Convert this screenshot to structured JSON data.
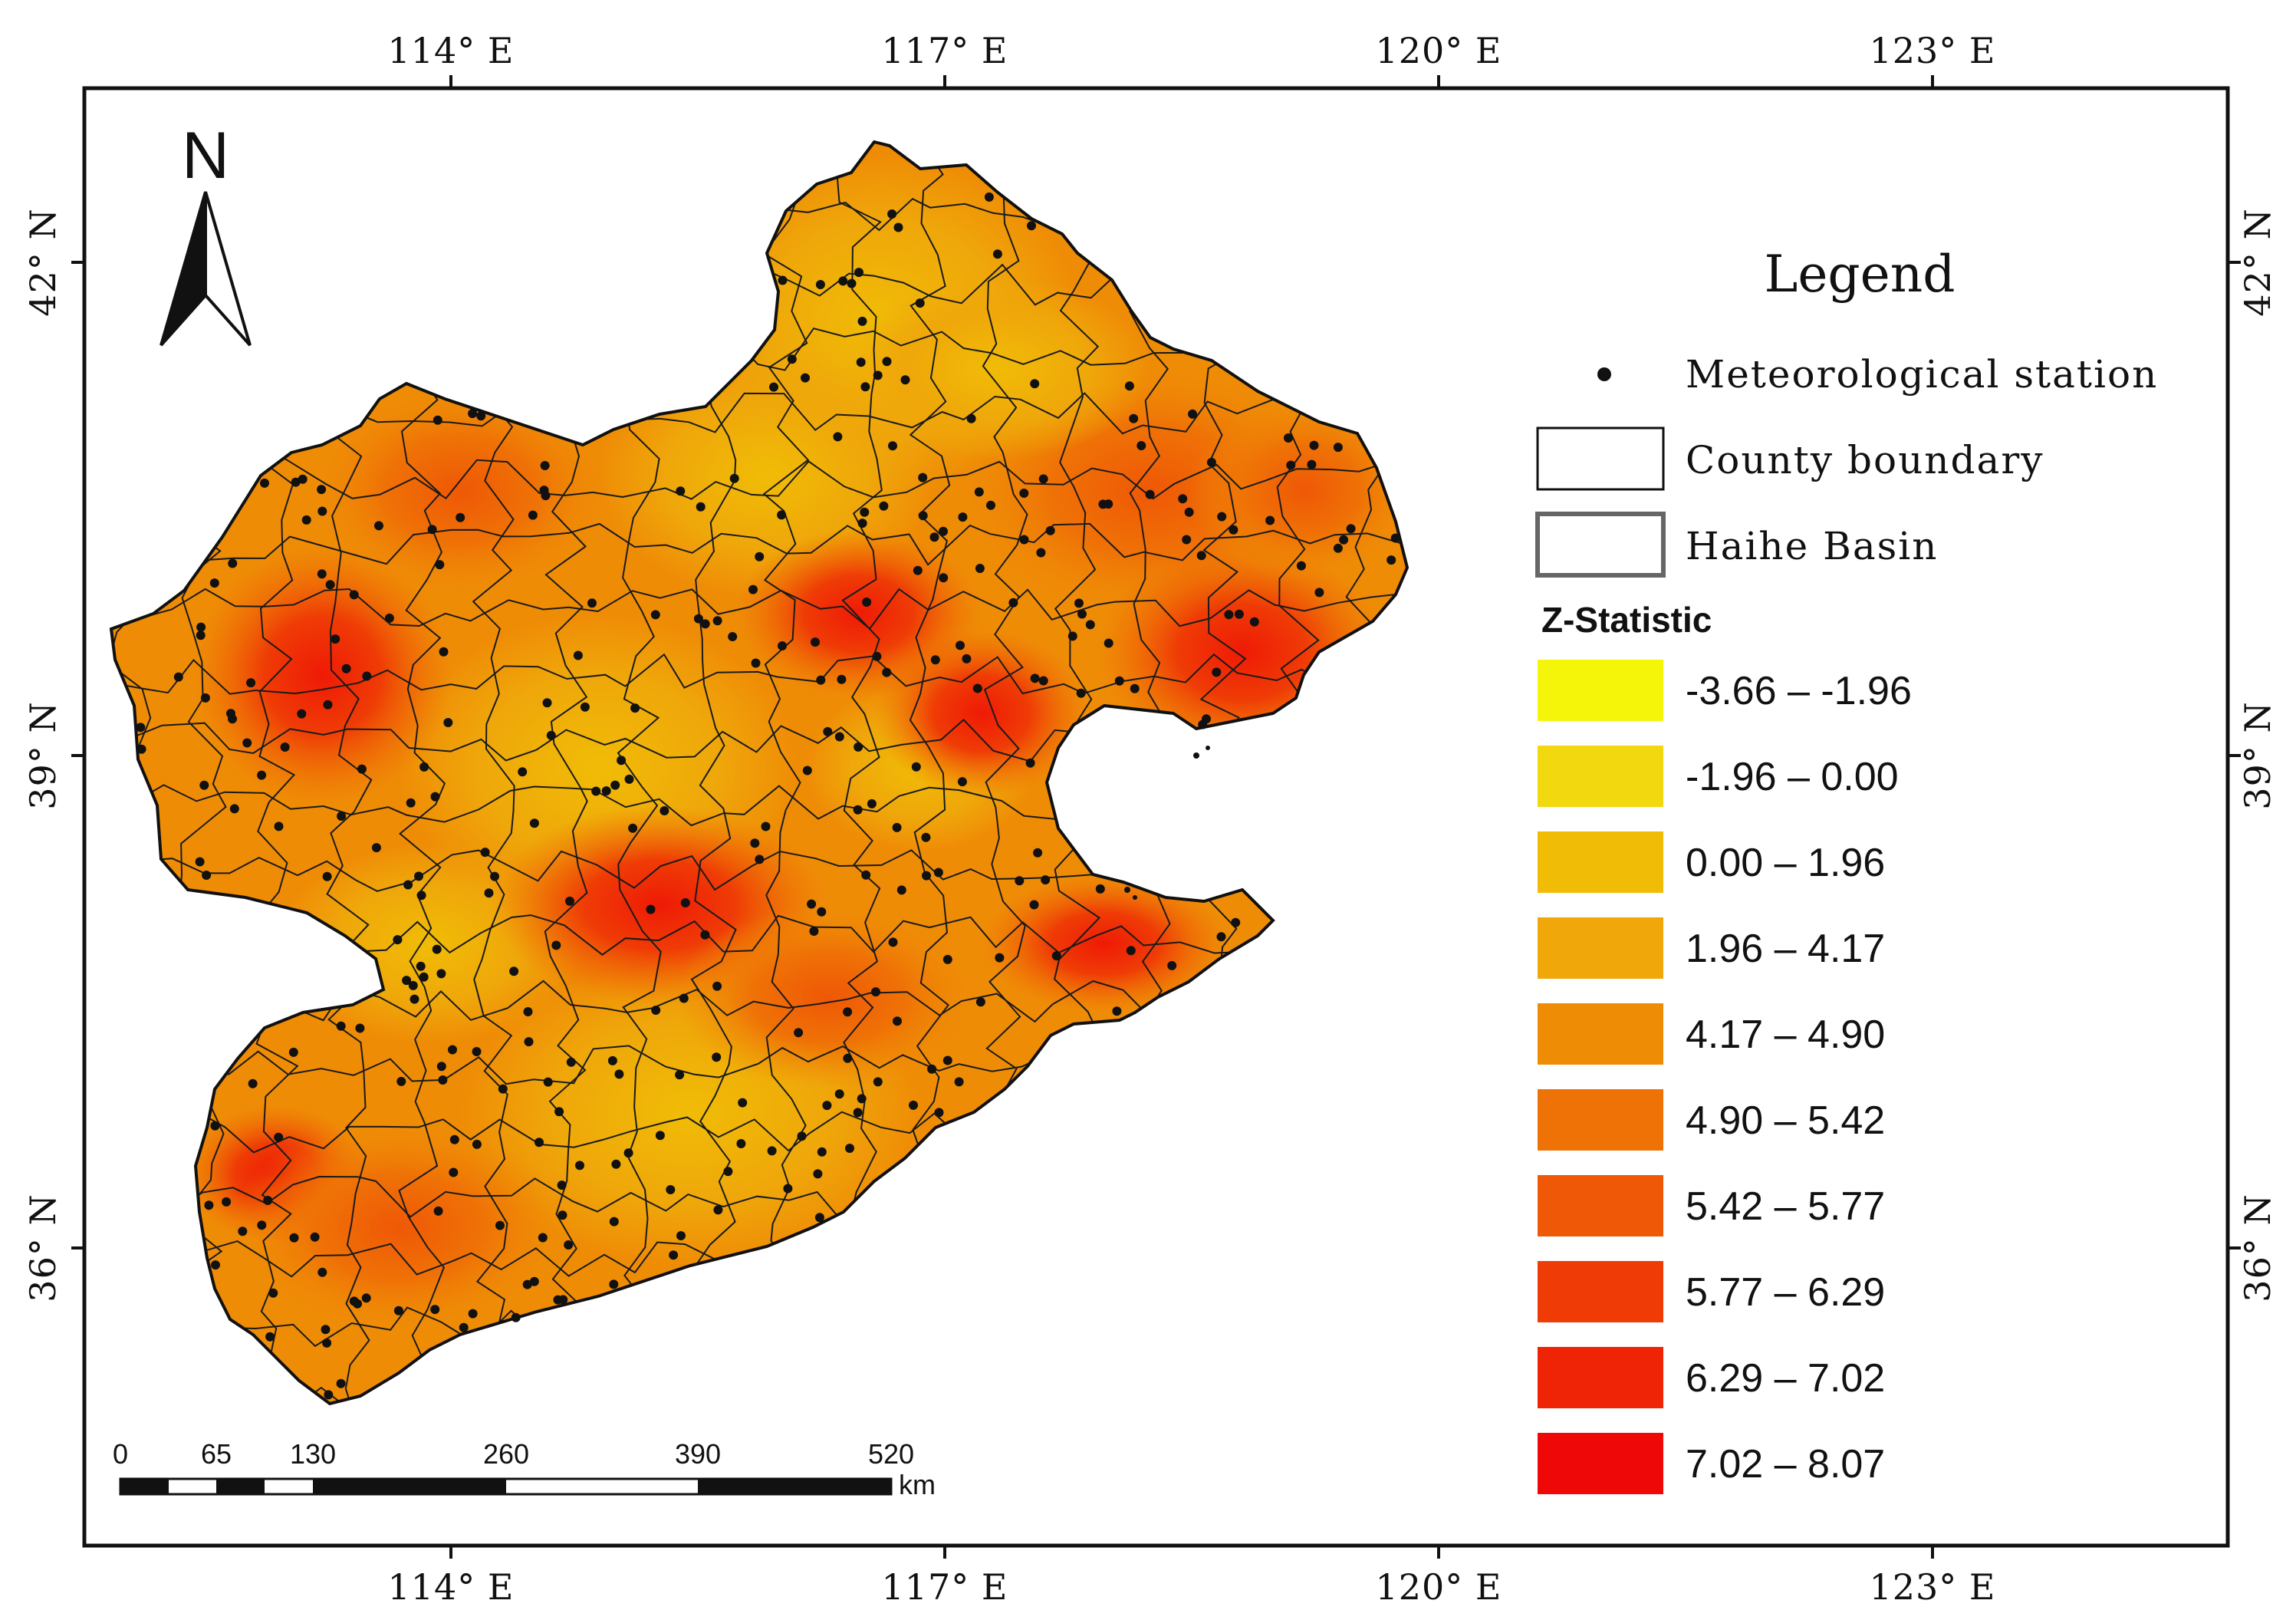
{
  "map": {
    "lon_ticks": [
      "114° E",
      "117° E",
      "120° E",
      "123° E"
    ],
    "lat_ticks": [
      "42° N",
      "39° N",
      "36° N"
    ],
    "north_arrow": {
      "letter": "N",
      "icon": "north-arrow-icon"
    }
  },
  "legend": {
    "title": "Legend",
    "items": [
      {
        "label": "Meteorological station",
        "icon": "station-dot-icon"
      },
      {
        "label": "County boundary",
        "icon": "county-boundary-icon"
      },
      {
        "label": "Haihe Basin",
        "icon": "basin-boundary-icon"
      }
    ],
    "z_title": "Z-Statistic",
    "classes": [
      {
        "label": "-3.66 – -1.96",
        "color": "#f5f50a"
      },
      {
        "label": "-1.96 – 0.00",
        "color": "#f2d80e"
      },
      {
        "label": "0.00 – 1.96",
        "color": "#f0bc06"
      },
      {
        "label": "1.96 – 4.17",
        "color": "#efa70a"
      },
      {
        "label": "4.17 – 4.90",
        "color": "#ef8c06"
      },
      {
        "label": "4.90 – 5.42",
        "color": "#ef7206"
      },
      {
        "label": "5.42 – 5.77",
        "color": "#ef5806"
      },
      {
        "label": "5.77 – 6.29",
        "color": "#ef3c06"
      },
      {
        "label": "6.29 – 7.02",
        "color": "#ef2406"
      },
      {
        "label": "7.02 – 8.07",
        "color": "#ef0808"
      }
    ]
  },
  "scale_bar": {
    "labels": [
      "0",
      "65",
      "130",
      "260",
      "390",
      "520"
    ],
    "unit": "km"
  }
}
